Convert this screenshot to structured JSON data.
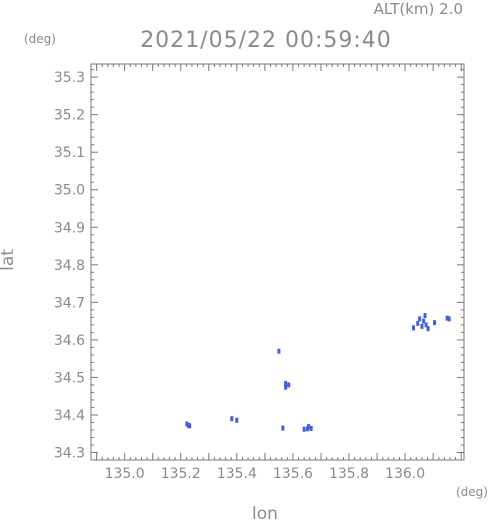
{
  "header": {
    "altitude_label": "ALT(km) 2.0",
    "timestamp": "2021/05/22 00:59:40"
  },
  "chart_data": {
    "type": "scatter",
    "xlabel": "lon",
    "ylabel": "lat",
    "x_unit": "(deg)",
    "y_unit": "(deg)",
    "xlim": [
      134.88,
      136.21
    ],
    "ylim": [
      34.28,
      35.335
    ],
    "x_ticks": [
      135.0,
      135.2,
      135.4,
      135.6,
      135.8,
      136.0
    ],
    "y_ticks": [
      34.3,
      34.4,
      34.5,
      34.6,
      34.7,
      34.8,
      34.9,
      35.0,
      35.1,
      35.2,
      35.3
    ],
    "x_tick_labels": [
      "135.0",
      "135.2",
      "135.4",
      "135.6",
      "135.8",
      "136.0"
    ],
    "y_tick_labels": [
      "34.3",
      "34.4",
      "34.5",
      "34.6",
      "34.7",
      "34.8",
      "34.9",
      "35.0",
      "35.1",
      "35.2",
      "35.3"
    ],
    "grid": false,
    "point_color": "#3f5fe0",
    "points": [
      {
        "x": 135.222,
        "y": 34.376
      },
      {
        "x": 135.228,
        "y": 34.372
      },
      {
        "x": 135.232,
        "y": 34.371
      },
      {
        "x": 135.382,
        "y": 34.39
      },
      {
        "x": 135.4,
        "y": 34.386
      },
      {
        "x": 135.55,
        "y": 34.57
      },
      {
        "x": 135.564,
        "y": 34.365
      },
      {
        "x": 135.574,
        "y": 34.484
      },
      {
        "x": 135.574,
        "y": 34.474
      },
      {
        "x": 135.585,
        "y": 34.48
      },
      {
        "x": 135.64,
        "y": 34.362
      },
      {
        "x": 135.652,
        "y": 34.363
      },
      {
        "x": 135.656,
        "y": 34.369
      },
      {
        "x": 135.665,
        "y": 34.364
      },
      {
        "x": 136.03,
        "y": 34.632
      },
      {
        "x": 136.045,
        "y": 34.644
      },
      {
        "x": 136.052,
        "y": 34.656
      },
      {
        "x": 136.06,
        "y": 34.636
      },
      {
        "x": 136.066,
        "y": 34.65
      },
      {
        "x": 136.071,
        "y": 34.665
      },
      {
        "x": 136.075,
        "y": 34.64
      },
      {
        "x": 136.082,
        "y": 34.63
      },
      {
        "x": 136.105,
        "y": 34.646
      },
      {
        "x": 136.15,
        "y": 34.658
      },
      {
        "x": 136.157,
        "y": 34.656
      }
    ]
  }
}
